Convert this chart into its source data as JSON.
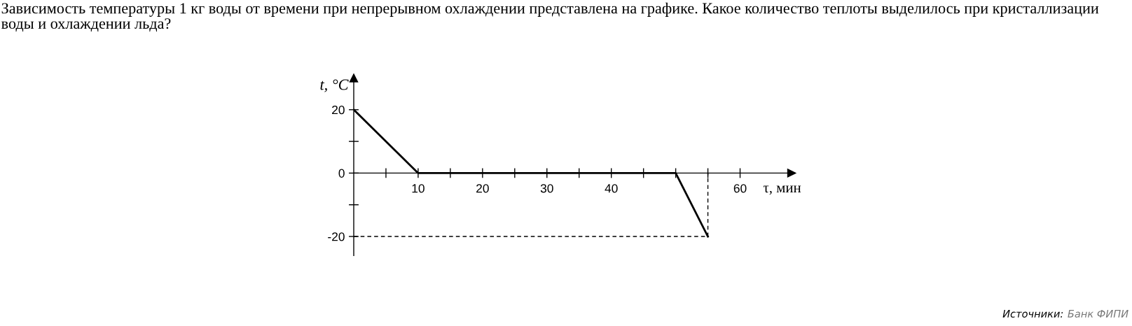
{
  "chart_data": {
    "type": "line",
    "title": "Зависимость температуры 1 кг воды от времени при непрерывном охлаждении представлена на графике. Какое количество теплоты выделилось при кристаллизации воды и охлаждении льда?",
    "xlabel": "τ, мин",
    "ylabel": "t, °C",
    "annotations": [
      "Источники:",
      "Банк ФИПИ"
    ],
    "series": [
      {
        "x": [
          0,
          10,
          50,
          55
        ],
        "values": [
          20,
          0,
          0,
          -20
        ],
        "color": "#000000",
        "line_style": "solid"
      },
      {
        "x": [
          0,
          55,
          55
        ],
        "values": [
          -20,
          -20,
          0
        ],
        "color": "#000000",
        "line_style": "dashed"
      }
    ],
    "xlim": [
      0,
      68
    ],
    "ylim": [
      -26,
      30
    ],
    "xticks": [
      {
        "value": 5,
        "label": null
      },
      10,
      {
        "value": 15,
        "label": null
      },
      20,
      {
        "value": 25,
        "label": null
      },
      30,
      {
        "value": 35,
        "label": null
      },
      40,
      {
        "value": 45,
        "label": null
      },
      {
        "value": 50,
        "label": null
      },
      {
        "value": 55,
        "label": null
      },
      60
    ],
    "yticks": [
      -20,
      {
        "value": -10,
        "label": null
      },
      0,
      {
        "value": 10,
        "label": null
      },
      20
    ]
  }
}
